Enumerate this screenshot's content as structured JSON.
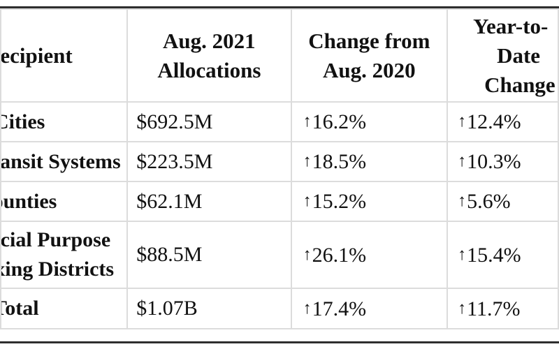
{
  "table": {
    "headers": {
      "recipient": "Recipient",
      "aug2021": [
        "Aug. 2021",
        "Allocations"
      ],
      "change": [
        "Change from",
        "Aug. 2020"
      ],
      "ytd": [
        "Year-to-",
        "Date",
        "Change"
      ]
    },
    "rows": [
      {
        "recipient": [
          "Cities"
        ],
        "allocation": "$692.5M",
        "arrow": "↑",
        "change": "16.2%",
        "ytd_arrow": "↑",
        "ytd": "12.4%"
      },
      {
        "recipient": [
          "Transit Systems"
        ],
        "allocation": "$223.5M",
        "arrow": "↑",
        "change": "18.5%",
        "ytd_arrow": "↑",
        "ytd": "10.3%"
      },
      {
        "recipient": [
          "Counties"
        ],
        "allocation": "$62.1M",
        "arrow": "↑",
        "change": "15.2%",
        "ytd_arrow": "↑",
        "ytd": "5.6%"
      },
      {
        "recipient": [
          "Special Purpose",
          "Taxing Districts"
        ],
        "allocation": "$88.5M",
        "arrow": "↑",
        "change": "26.1%",
        "ytd_arrow": "↑",
        "ytd": "15.4%"
      },
      {
        "recipient": [
          "Total"
        ],
        "allocation": "$1.07B",
        "arrow": "↑",
        "change": "17.4%",
        "ytd_arrow": "↑",
        "ytd": "11.7%"
      }
    ]
  }
}
